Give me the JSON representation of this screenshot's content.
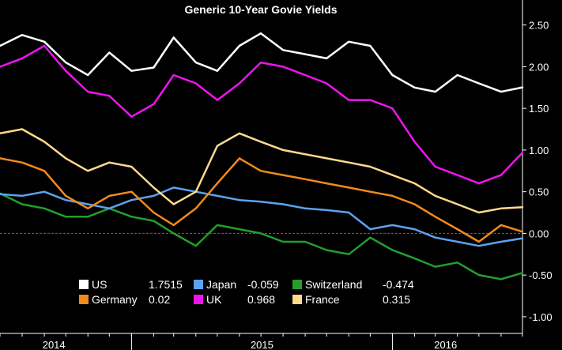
{
  "chart_data": {
    "type": "line",
    "title": "Generic 10-Year Govie Yields",
    "xlabel": "",
    "ylabel": "",
    "x_tick_labels": [
      "2014",
      "2015",
      "2016"
    ],
    "x_dividers": [
      "2015-01-01",
      "2016-01-01"
    ],
    "x_range": [
      "2014-07-01",
      "2016-07-01"
    ],
    "ylim": [
      -1.2,
      2.8
    ],
    "y_ticks": [
      2.5,
      2.0,
      1.5,
      1.0,
      0.5,
      0.0,
      -0.5,
      -1.0
    ],
    "y_tick_labels": [
      "2.50",
      "2.00",
      "1.50",
      "1.00",
      "0.50",
      "0.00",
      "-0.50",
      "-1.00"
    ],
    "zero_line": {
      "value": 0,
      "color": "#e0322e",
      "style": "dashed"
    },
    "grid": false,
    "y_axis_side": "right",
    "legend_placement": "bottom-center",
    "series": [
      {
        "name": "US",
        "legend_value": "1.7515",
        "color": "#ffffff",
        "points": [
          [
            "2014-07-01",
            2.25
          ],
          [
            "2014-08-01",
            2.38
          ],
          [
            "2014-09-01",
            2.3
          ],
          [
            "2014-10-01",
            2.05
          ],
          [
            "2014-11-01",
            1.9
          ],
          [
            "2014-12-01",
            2.17
          ],
          [
            "2015-01-01",
            1.95
          ],
          [
            "2015-02-01",
            1.99
          ],
          [
            "2015-03-01",
            2.35
          ],
          [
            "2015-04-01",
            2.05
          ],
          [
            "2015-05-01",
            1.95
          ],
          [
            "2015-06-01",
            2.25
          ],
          [
            "2015-07-01",
            2.4
          ],
          [
            "2015-08-01",
            2.2
          ],
          [
            "2015-09-01",
            2.15
          ],
          [
            "2015-10-01",
            2.1
          ],
          [
            "2015-11-01",
            2.3
          ],
          [
            "2015-12-01",
            2.25
          ],
          [
            "2016-01-01",
            1.9
          ],
          [
            "2016-02-01",
            1.75
          ],
          [
            "2016-03-01",
            1.7
          ],
          [
            "2016-04-01",
            1.9
          ],
          [
            "2016-05-01",
            1.8
          ],
          [
            "2016-06-01",
            1.7
          ],
          [
            "2016-07-01",
            1.7515
          ]
        ]
      },
      {
        "name": "Germany",
        "legend_value": "0.02",
        "color": "#f08a1c",
        "points": [
          [
            "2014-07-01",
            0.9
          ],
          [
            "2014-08-01",
            0.85
          ],
          [
            "2014-09-01",
            0.75
          ],
          [
            "2014-10-01",
            0.45
          ],
          [
            "2014-11-01",
            0.3
          ],
          [
            "2014-12-01",
            0.45
          ],
          [
            "2015-01-01",
            0.5
          ],
          [
            "2015-02-01",
            0.25
          ],
          [
            "2015-03-01",
            0.1
          ],
          [
            "2015-04-01",
            0.3
          ],
          [
            "2015-05-01",
            0.6
          ],
          [
            "2015-06-01",
            0.9
          ],
          [
            "2015-07-01",
            0.75
          ],
          [
            "2015-08-01",
            0.7
          ],
          [
            "2015-09-01",
            0.65
          ],
          [
            "2015-10-01",
            0.6
          ],
          [
            "2015-11-01",
            0.55
          ],
          [
            "2015-12-01",
            0.5
          ],
          [
            "2016-01-01",
            0.45
          ],
          [
            "2016-02-01",
            0.35
          ],
          [
            "2016-03-01",
            0.2
          ],
          [
            "2016-04-01",
            0.05
          ],
          [
            "2016-05-01",
            -0.1
          ],
          [
            "2016-06-01",
            0.1
          ],
          [
            "2016-07-01",
            0.02
          ]
        ]
      },
      {
        "name": "Japan",
        "legend_value": "-0.059",
        "color": "#5ba3f0",
        "points": [
          [
            "2014-07-01",
            0.47
          ],
          [
            "2014-08-01",
            0.45
          ],
          [
            "2014-09-01",
            0.5
          ],
          [
            "2014-10-01",
            0.4
          ],
          [
            "2014-11-01",
            0.35
          ],
          [
            "2014-12-01",
            0.3
          ],
          [
            "2015-01-01",
            0.4
          ],
          [
            "2015-02-01",
            0.45
          ],
          [
            "2015-03-01",
            0.55
          ],
          [
            "2015-04-01",
            0.5
          ],
          [
            "2015-05-01",
            0.45
          ],
          [
            "2015-06-01",
            0.4
          ],
          [
            "2015-07-01",
            0.38
          ],
          [
            "2015-08-01",
            0.35
          ],
          [
            "2015-09-01",
            0.3
          ],
          [
            "2015-10-01",
            0.28
          ],
          [
            "2015-11-01",
            0.25
          ],
          [
            "2015-12-01",
            0.05
          ],
          [
            "2016-01-01",
            0.1
          ],
          [
            "2016-02-01",
            0.05
          ],
          [
            "2016-03-01",
            -0.05
          ],
          [
            "2016-04-01",
            -0.1
          ],
          [
            "2016-05-01",
            -0.15
          ],
          [
            "2016-06-01",
            -0.1
          ],
          [
            "2016-07-01",
            -0.059
          ]
        ]
      },
      {
        "name": "Switzerland",
        "legend_value": "-0.474",
        "color": "#22a02a",
        "points": [
          [
            "2014-07-01",
            0.48
          ],
          [
            "2014-08-01",
            0.35
          ],
          [
            "2014-09-01",
            0.3
          ],
          [
            "2014-10-01",
            0.2
          ],
          [
            "2014-11-01",
            0.2
          ],
          [
            "2014-12-01",
            0.3
          ],
          [
            "2015-01-01",
            0.2
          ],
          [
            "2015-02-01",
            0.15
          ],
          [
            "2015-03-01",
            0.0
          ],
          [
            "2015-04-01",
            -0.15
          ],
          [
            "2015-05-01",
            0.1
          ],
          [
            "2015-06-01",
            0.05
          ],
          [
            "2015-07-01",
            0.0
          ],
          [
            "2015-08-01",
            -0.1
          ],
          [
            "2015-09-01",
            -0.1
          ],
          [
            "2015-10-01",
            -0.2
          ],
          [
            "2015-11-01",
            -0.25
          ],
          [
            "2015-12-01",
            -0.05
          ],
          [
            "2016-01-01",
            -0.2
          ],
          [
            "2016-02-01",
            -0.3
          ],
          [
            "2016-03-01",
            -0.4
          ],
          [
            "2016-04-01",
            -0.35
          ],
          [
            "2016-05-01",
            -0.5
          ],
          [
            "2016-06-01",
            -0.55
          ],
          [
            "2016-07-01",
            -0.474
          ]
        ]
      },
      {
        "name": "UK",
        "legend_value": "0.968",
        "color": "#ee14ee",
        "points": [
          [
            "2014-07-01",
            2.0
          ],
          [
            "2014-08-01",
            2.1
          ],
          [
            "2014-09-01",
            2.25
          ],
          [
            "2014-10-01",
            1.95
          ],
          [
            "2014-11-01",
            1.7
          ],
          [
            "2014-12-01",
            1.65
          ],
          [
            "2015-01-01",
            1.4
          ],
          [
            "2015-02-01",
            1.55
          ],
          [
            "2015-03-01",
            1.9
          ],
          [
            "2015-04-01",
            1.8
          ],
          [
            "2015-05-01",
            1.6
          ],
          [
            "2015-06-01",
            1.8
          ],
          [
            "2015-07-01",
            2.05
          ],
          [
            "2015-08-01",
            2.0
          ],
          [
            "2015-09-01",
            1.9
          ],
          [
            "2015-10-01",
            1.8
          ],
          [
            "2015-11-01",
            1.6
          ],
          [
            "2015-12-01",
            1.6
          ],
          [
            "2016-01-01",
            1.5
          ],
          [
            "2016-02-01",
            1.1
          ],
          [
            "2016-03-01",
            0.8
          ],
          [
            "2016-04-01",
            0.7
          ],
          [
            "2016-05-01",
            0.6
          ],
          [
            "2016-06-01",
            0.7
          ],
          [
            "2016-07-01",
            0.968
          ]
        ]
      },
      {
        "name": "France",
        "legend_value": "0.315",
        "color": "#ffd98c",
        "points": [
          [
            "2014-07-01",
            1.2
          ],
          [
            "2014-08-01",
            1.25
          ],
          [
            "2014-09-01",
            1.1
          ],
          [
            "2014-10-01",
            0.9
          ],
          [
            "2014-11-01",
            0.75
          ],
          [
            "2014-12-01",
            0.85
          ],
          [
            "2015-01-01",
            0.8
          ],
          [
            "2015-02-01",
            0.55
          ],
          [
            "2015-03-01",
            0.35
          ],
          [
            "2015-04-01",
            0.5
          ],
          [
            "2015-05-01",
            1.05
          ],
          [
            "2015-06-01",
            1.2
          ],
          [
            "2015-07-01",
            1.1
          ],
          [
            "2015-08-01",
            1.0
          ],
          [
            "2015-09-01",
            0.95
          ],
          [
            "2015-10-01",
            0.9
          ],
          [
            "2015-11-01",
            0.85
          ],
          [
            "2015-12-01",
            0.8
          ],
          [
            "2016-01-01",
            0.7
          ],
          [
            "2016-02-01",
            0.6
          ],
          [
            "2016-03-01",
            0.45
          ],
          [
            "2016-04-01",
            0.35
          ],
          [
            "2016-05-01",
            0.25
          ],
          [
            "2016-06-01",
            0.3
          ],
          [
            "2016-07-01",
            0.315
          ]
        ]
      }
    ]
  }
}
